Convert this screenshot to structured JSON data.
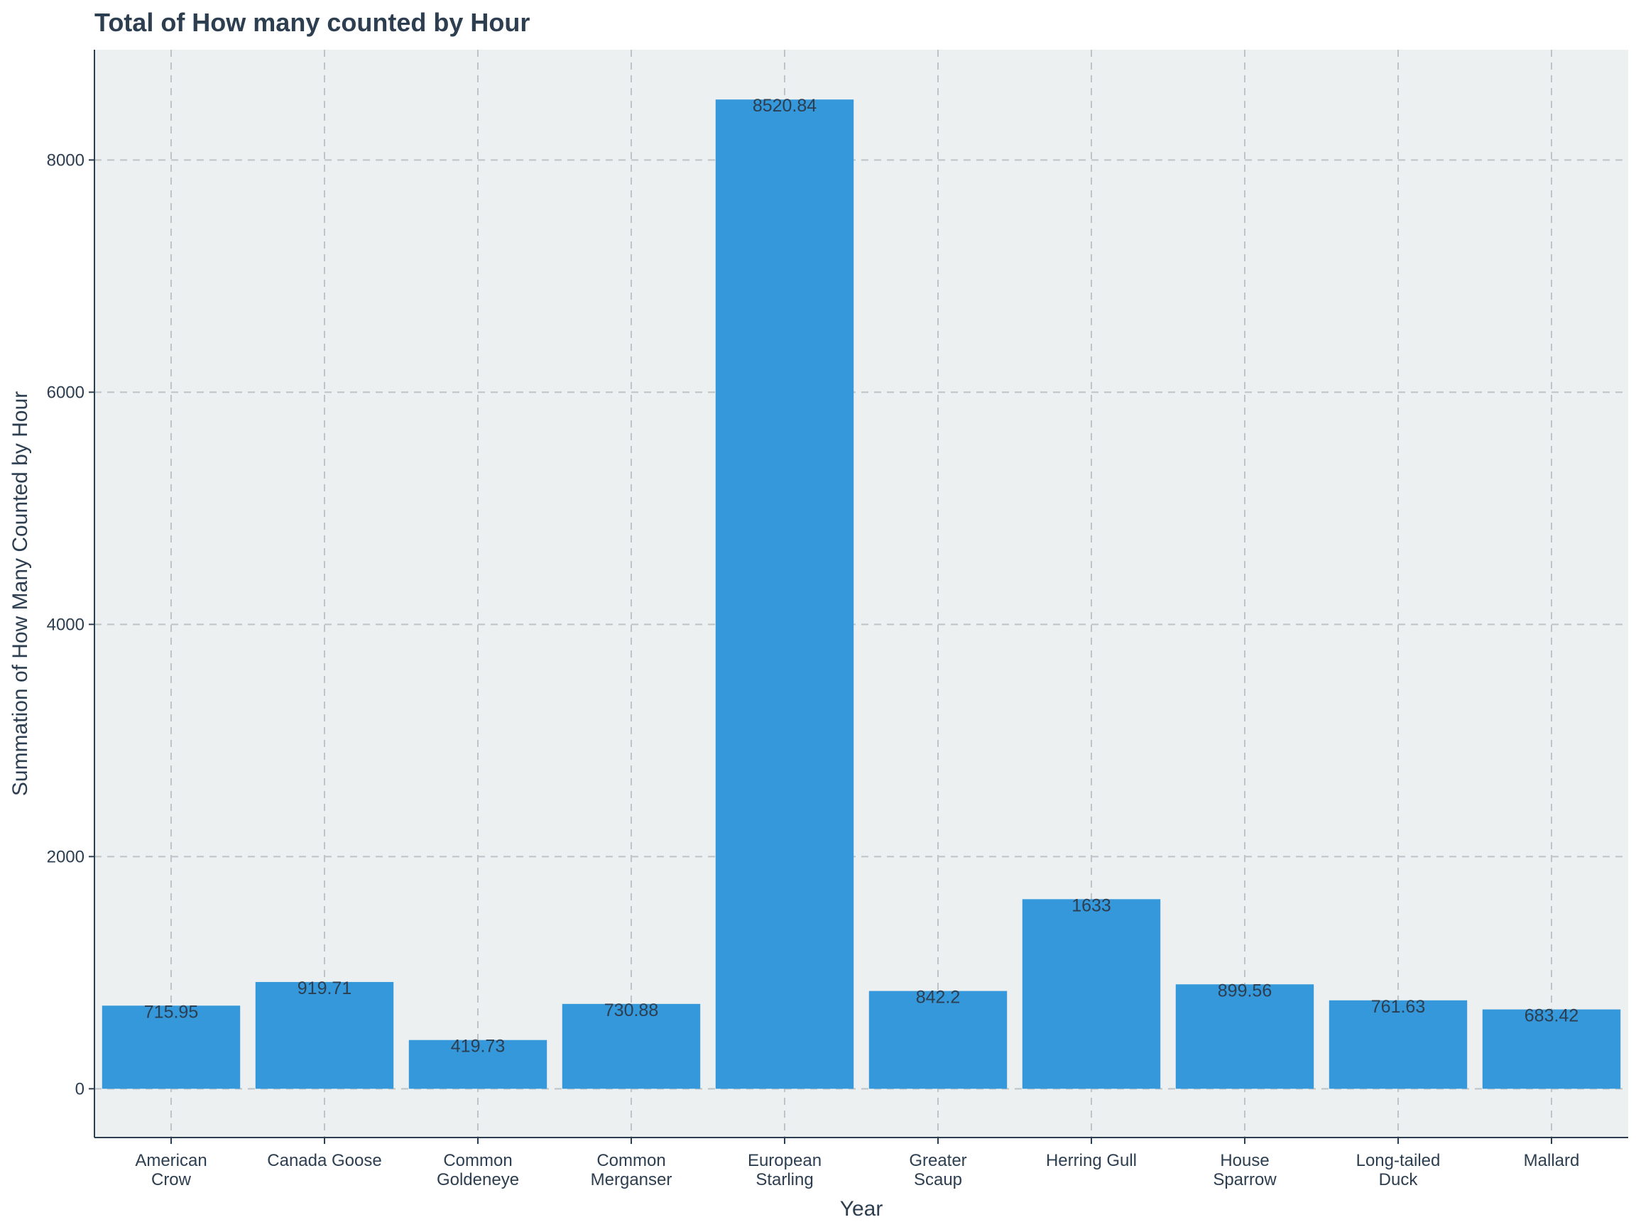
{
  "chart_data": {
    "type": "bar",
    "title": "Total of How many counted by Hour",
    "xlabel": "Year",
    "ylabel": "Summation of How Many Counted by Hour",
    "categories": [
      [
        "American",
        "Crow"
      ],
      [
        "Canada Goose"
      ],
      [
        "Common",
        "Goldeneye"
      ],
      [
        "Common",
        "Merganser"
      ],
      [
        "European",
        "Starling"
      ],
      [
        "Greater",
        "Scaup"
      ],
      [
        "Herring Gull"
      ],
      [
        "House",
        "Sparrow"
      ],
      [
        "Long-tailed",
        "Duck"
      ],
      [
        "Mallard"
      ]
    ],
    "values": [
      715.95,
      919.71,
      419.73,
      730.88,
      8520.84,
      842.2,
      1633,
      899.56,
      761.63,
      683.42
    ],
    "value_labels": [
      "715.95",
      "919.71",
      "419.73",
      "730.88",
      "8520.84",
      "842.2",
      "1633",
      "899.56",
      "761.63",
      "683.42"
    ],
    "ylim": [
      -420,
      8950
    ],
    "yticks": [
      0,
      2000,
      4000,
      6000,
      8000
    ],
    "grid": true,
    "legend": "none",
    "colors": {
      "bar": "#3498db",
      "panel": "#ecf0f1",
      "grid": "#bdc3c7",
      "text": "#2c3e50",
      "axis": "#2c3e50"
    }
  }
}
